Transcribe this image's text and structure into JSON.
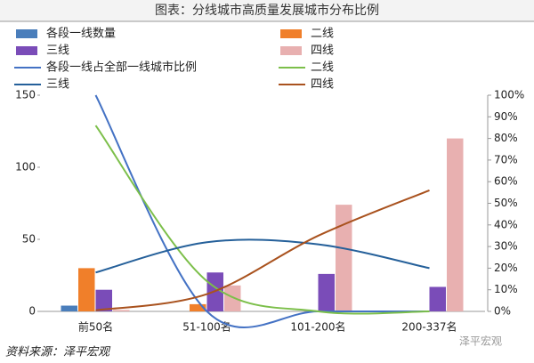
{
  "chart_data": {
    "type": "bar",
    "title": "图表：分线城市高质量发展城市分布比例",
    "source": "资料来源：泽平宏观",
    "watermark": "泽平宏观",
    "categories": [
      "前50名",
      "51-100名",
      "101-200名",
      "200-337名"
    ],
    "ylim": [
      0,
      150
    ],
    "yticks": [
      0,
      50,
      100,
      150
    ],
    "y2lim": [
      0,
      100
    ],
    "y2ticks": [
      {
        "value": 0,
        "label": "0%"
      },
      {
        "value": 10,
        "label": "10%"
      },
      {
        "value": 20,
        "label": "20%"
      },
      {
        "value": 30,
        "label": "30%"
      },
      {
        "value": 40,
        "label": "40%"
      },
      {
        "value": 50,
        "label": "50%"
      },
      {
        "value": 60,
        "label": "60%"
      },
      {
        "value": 70,
        "label": "70%"
      },
      {
        "value": 80,
        "label": "80%"
      },
      {
        "value": 90,
        "label": "90%"
      },
      {
        "value": 100,
        "label": "100%"
      }
    ],
    "legend": "top",
    "series": [
      {
        "name": "各段一线数量",
        "type": "bar",
        "color": "#4a7ebb",
        "values": [
          4,
          0,
          0,
          0
        ]
      },
      {
        "name": "二线",
        "type": "bar",
        "color": "#f07f2a",
        "values": [
          30,
          5,
          0,
          0
        ]
      },
      {
        "name": "三线",
        "type": "bar",
        "color": "#7a4cb8",
        "values": [
          15,
          27,
          26,
          17
        ]
      },
      {
        "name": "四线",
        "type": "bar",
        "color": "#e8b0b0",
        "values": [
          1,
          18,
          74,
          120
        ]
      },
      {
        "name": "各段一线占全部一线城市比例",
        "type": "line",
        "axis": "y2",
        "color": "#4472c4",
        "values": [
          100,
          0,
          0,
          0
        ]
      },
      {
        "name": "二线",
        "type": "line",
        "axis": "y2",
        "color": "#7cbf4a",
        "values": [
          86,
          14,
          0,
          0
        ]
      },
      {
        "name": "三线",
        "type": "line",
        "axis": "y2",
        "color": "#25609a",
        "values": [
          18,
          32,
          31,
          20
        ]
      },
      {
        "name": "四线",
        "type": "line",
        "axis": "y2",
        "color": "#a9521e",
        "values": [
          0.5,
          8,
          35,
          56
        ]
      }
    ]
  }
}
